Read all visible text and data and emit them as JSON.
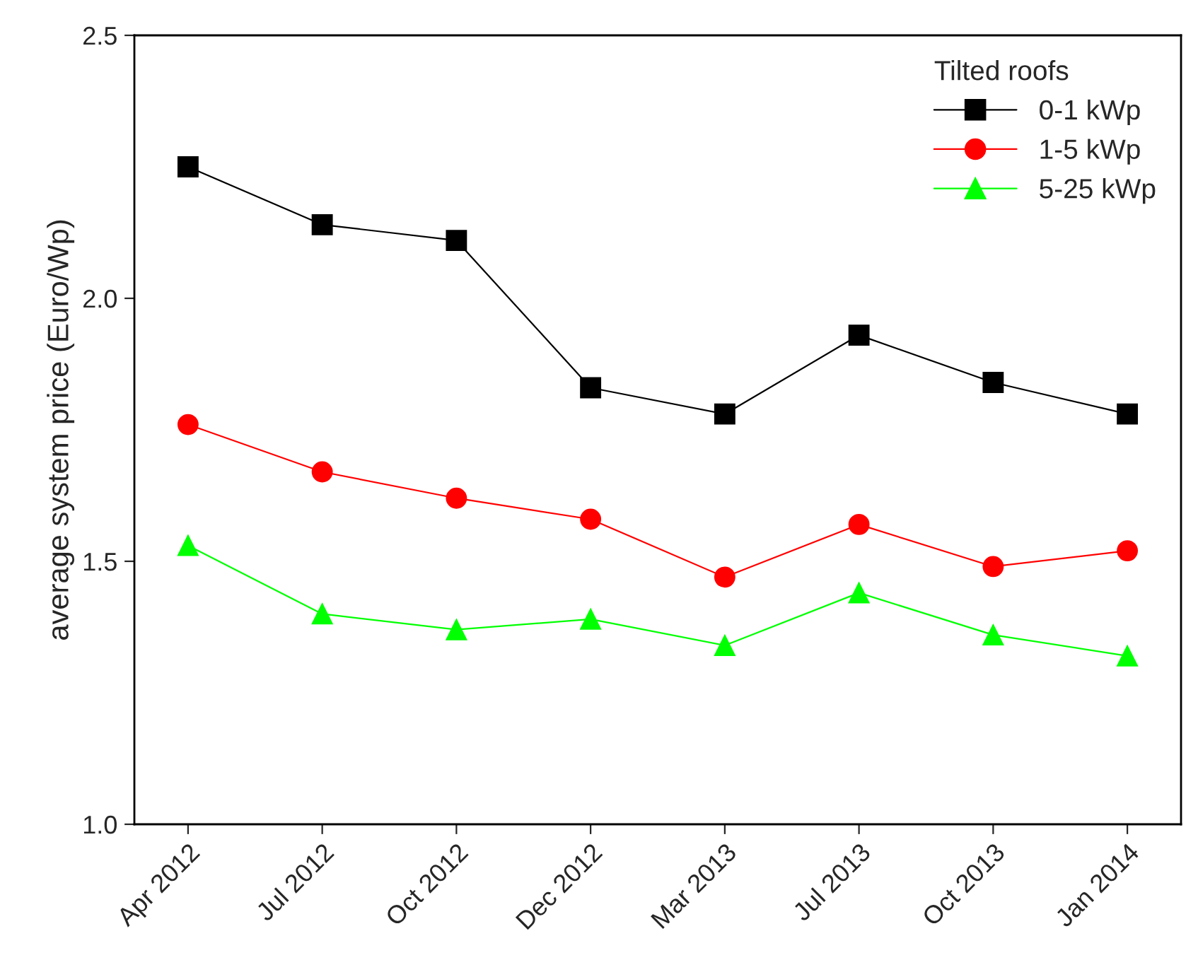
{
  "chart_data": {
    "type": "line",
    "ylabel": "average system price (Euro/Wp)",
    "legend_title": "Tilted roofs",
    "categories": [
      "Apr 2012",
      "Jul 2012",
      "Oct 2012",
      "Dec 2012",
      "Mar 2013",
      "Jul 2013",
      "Oct 2013",
      "Jan 2014"
    ],
    "series": [
      {
        "name": "0-1 kWp",
        "color": "#000000",
        "marker": "square",
        "values": [
          2.25,
          2.14,
          2.11,
          1.83,
          1.78,
          1.93,
          1.84,
          1.78
        ]
      },
      {
        "name": "1-5 kWp",
        "color": "#ff0000",
        "marker": "circle",
        "values": [
          1.76,
          1.67,
          1.62,
          1.58,
          1.47,
          1.57,
          1.49,
          1.52
        ]
      },
      {
        "name": "5-25 kWp",
        "color": "#00ff00",
        "marker": "triangle",
        "values": [
          1.53,
          1.4,
          1.37,
          1.39,
          1.34,
          1.44,
          1.36,
          1.32
        ]
      }
    ],
    "ylim": [
      1.0,
      2.5
    ],
    "yticks": [
      {
        "value": 1.0,
        "label": "1.0"
      },
      {
        "value": 1.5,
        "label": "1.5"
      },
      {
        "value": 2.0,
        "label": "2.0"
      },
      {
        "value": 2.5,
        "label": "2.5"
      }
    ],
    "grid": false,
    "legend": "top right",
    "line_style": "solid"
  }
}
